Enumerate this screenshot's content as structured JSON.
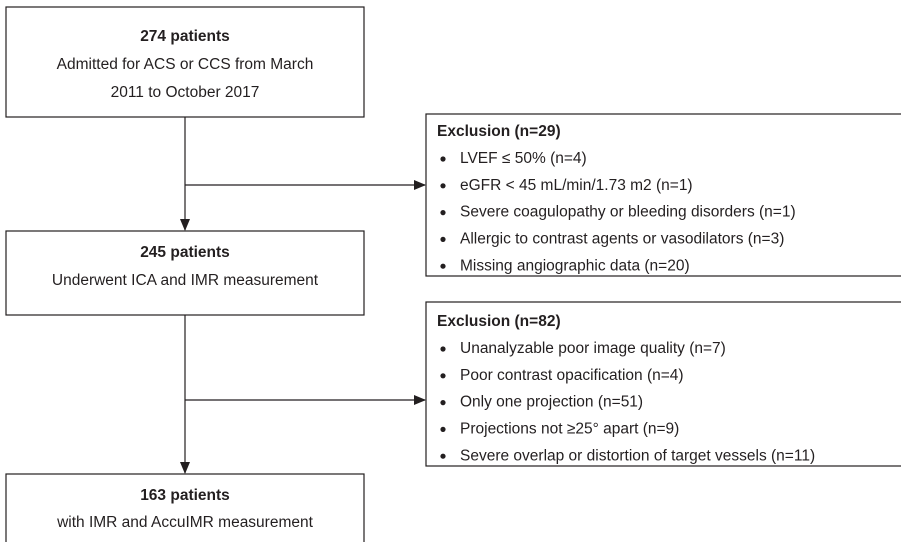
{
  "nodes": [
    {
      "title": "274 patients",
      "lines": [
        "Admitted for ACS or CCS from March",
        "2011 to October 2017"
      ]
    },
    {
      "title": "245 patients",
      "lines": [
        "Underwent ICA and IMR measurement"
      ]
    },
    {
      "title": "163 patients",
      "lines": [
        "with IMR and AccuIMR measurement"
      ]
    }
  ],
  "exclusions": [
    {
      "title": "Exclusion (n=29)",
      "items": [
        "LVEF ≤ 50% (n=4)",
        "eGFR < 45 mL/min/1.73 m2 (n=1)",
        "Severe coagulopathy or bleeding disorders (n=1)",
        "Allergic to contrast agents or vasodilators (n=3)",
        "Missing angiographic data (n=20)"
      ]
    },
    {
      "title": "Exclusion (n=82)",
      "items": [
        "Unanalyzable poor image quality (n=7)",
        "Poor contrast opacification (n=4)",
        "Only one projection (n=51)",
        "Projections not ≥25° apart (n=9)",
        "Severe overlap or distortion of target vessels (n=11)"
      ]
    }
  ]
}
